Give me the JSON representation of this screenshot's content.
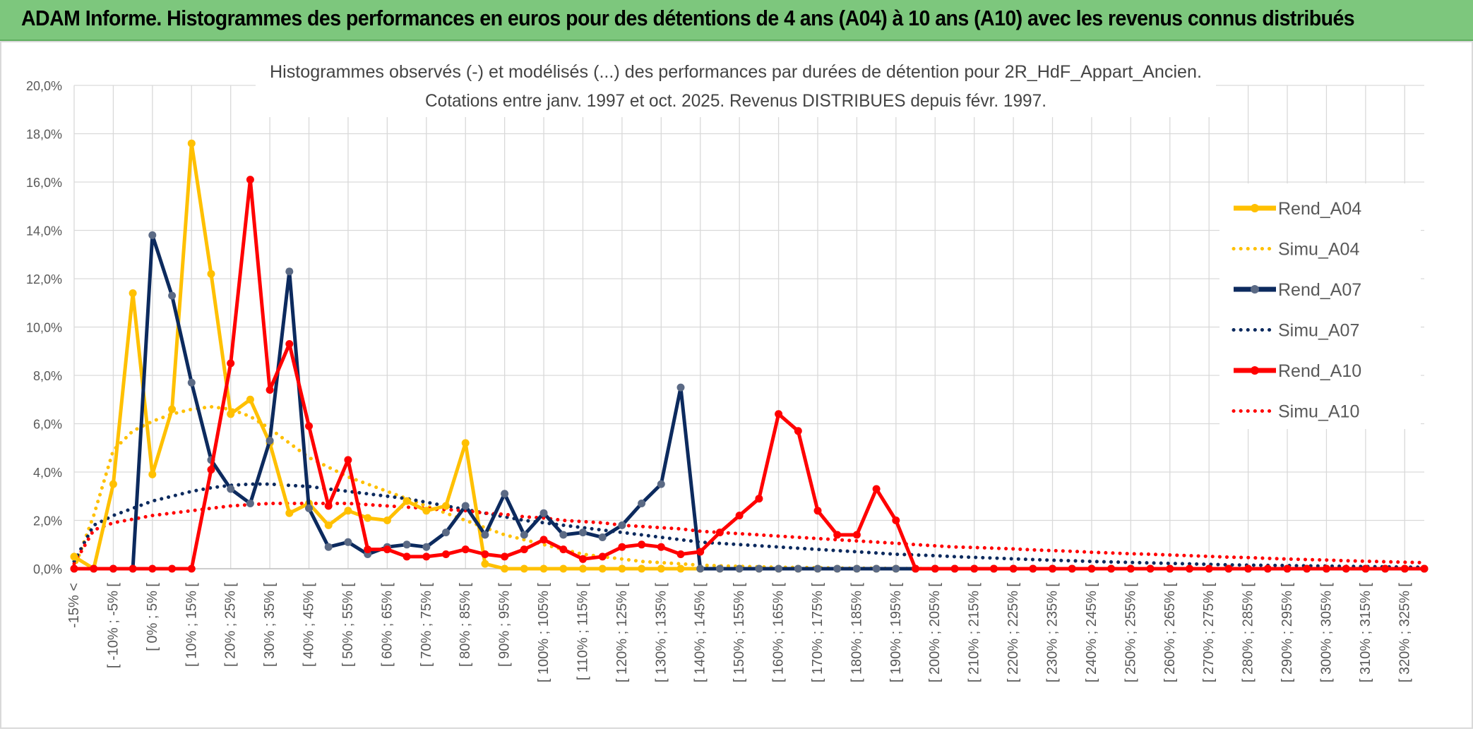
{
  "header": {
    "title": "ADAM Informe. Histogrammes des performances en euros pour des détentions de 4 ans (A04) à 10 ans (A10) avec les revenus connus distribués"
  },
  "chart_data": {
    "type": "line",
    "title": "Histogrammes observés (-) et modélisés (...) des performances par durées de détention pour 2R_HdF_Appart_Ancien.",
    "subtitle": "Cotations entre janv. 1997 et oct. 2025. Revenus DISTRIBUES depuis févr. 1997.",
    "xlabel": "",
    "ylabel": "",
    "ylim": [
      0,
      20
    ],
    "yticks": [
      "0,0%",
      "2,0%",
      "4,0%",
      "6,0%",
      "8,0%",
      "10,0%",
      "12,0%",
      "14,0%",
      "16,0%",
      "18,0%",
      "20,0%"
    ],
    "x_tick_labels": [
      "-15% <",
      "[ -10% ; -5% [",
      "[ 0% ; 5% [",
      "[ 10% ; 15% [",
      "[ 20% ; 25% [",
      "[ 30% ; 35% [",
      "[ 40% ; 45% [",
      "[ 50% ; 55% [",
      "[ 60% ; 65% [",
      "[ 70% ; 75% [",
      "[ 80% ; 85% [",
      "[ 90% ; 95% [",
      "[ 100% ; 105% [",
      "[ 110% ; 115% [",
      "[ 120% ; 125% [",
      "[ 130% ; 135% [",
      "[ 140% ; 145% [",
      "[ 150% ; 155% [",
      "[ 160% ; 165% [",
      "[ 170% ; 175% [",
      "[ 180% ; 185% [",
      "[ 190% ; 195% [",
      "[ 200% ; 205% [",
      "[ 210% ; 215% [",
      "[ 220% ; 225% [",
      "[ 230% ; 235% [",
      "[ 240% ; 245% [",
      "[ 250% ; 255% [",
      "[ 260% ; 265% [",
      "[ 270% ; 275% [",
      "[ 280% ; 285% [",
      "[ 290% ; 295% [",
      "[ 300% ; 305% [",
      "[ 310% ; 315% [",
      "[ 320% ; 325% ["
    ],
    "n_points": 70,
    "grid": true,
    "legend": "right",
    "series": [
      {
        "name": "Rend_A04",
        "style": "solid",
        "color": "#ffc000",
        "marker_color": "#ffc000",
        "values": [
          0.5,
          0,
          3.5,
          11.4,
          3.9,
          6.6,
          17.6,
          12.2,
          6.4,
          7.0,
          5.2,
          2.3,
          2.7,
          1.8,
          2.4,
          2.1,
          2.0,
          2.8,
          2.4,
          2.6,
          5.2,
          0.2,
          0,
          0,
          0,
          0,
          0,
          0,
          0,
          0,
          0,
          0,
          0,
          0,
          0,
          0,
          0,
          0,
          0,
          0,
          0,
          0,
          0,
          0,
          0,
          0,
          0,
          0,
          0,
          0,
          0,
          0,
          0,
          0,
          0,
          0,
          0,
          0,
          0,
          0,
          0,
          0,
          0,
          0,
          0,
          0,
          0,
          0,
          0,
          0
        ]
      },
      {
        "name": "Simu_A04",
        "style": "dotted",
        "color": "#ffc000",
        "values": [
          0,
          2.2,
          4.9,
          5.7,
          6.1,
          6.4,
          6.6,
          6.7,
          6.6,
          6.3,
          5.8,
          5.2,
          4.6,
          4.2,
          3.8,
          3.5,
          3.2,
          2.9,
          2.6,
          2.3,
          2.0,
          1.7,
          1.4,
          1.2,
          1.0,
          0.8,
          0.6,
          0.5,
          0.4,
          0.3,
          0.25,
          0.2,
          0.15,
          0.12,
          0.1,
          0.08,
          0.06,
          0.05,
          0.04,
          0.03,
          0.02,
          0.02,
          0.01,
          0.01,
          0,
          0,
          0,
          0,
          0,
          0,
          0,
          0,
          0,
          0,
          0,
          0,
          0,
          0,
          0,
          0,
          0,
          0,
          0,
          0,
          0,
          0,
          0,
          0,
          0,
          0
        ]
      },
      {
        "name": "Rend_A07",
        "style": "solid",
        "color": "#0c2a5e",
        "marker_color": "#5b6a85",
        "values": [
          0,
          0,
          0,
          0,
          13.8,
          11.3,
          7.7,
          4.5,
          3.3,
          2.7,
          5.3,
          12.3,
          2.5,
          0.9,
          1.1,
          0.6,
          0.9,
          1.0,
          0.9,
          1.5,
          2.6,
          1.4,
          3.1,
          1.4,
          2.3,
          1.4,
          1.5,
          1.3,
          1.8,
          2.7,
          3.5,
          7.5,
          0,
          0,
          0,
          0,
          0,
          0,
          0,
          0,
          0,
          0,
          0,
          0,
          0,
          0,
          0,
          0,
          0,
          0,
          0,
          0,
          0,
          0,
          0,
          0,
          0,
          0,
          0,
          0,
          0,
          0,
          0,
          0,
          0,
          0,
          0,
          0,
          0,
          0
        ]
      },
      {
        "name": "Simu_A07",
        "style": "dotted",
        "color": "#0c2a5e",
        "values": [
          0.3,
          1.8,
          2.2,
          2.5,
          2.8,
          3.0,
          3.2,
          3.35,
          3.45,
          3.5,
          3.5,
          3.45,
          3.4,
          3.3,
          3.2,
          3.1,
          3.0,
          2.9,
          2.75,
          2.6,
          2.45,
          2.3,
          2.15,
          2.0,
          1.9,
          1.8,
          1.7,
          1.6,
          1.5,
          1.4,
          1.3,
          1.2,
          1.1,
          1.05,
          1.0,
          0.95,
          0.9,
          0.85,
          0.8,
          0.75,
          0.7,
          0.65,
          0.6,
          0.57,
          0.54,
          0.5,
          0.47,
          0.44,
          0.41,
          0.38,
          0.35,
          0.33,
          0.3,
          0.28,
          0.26,
          0.24,
          0.22,
          0.2,
          0.18,
          0.16,
          0.15,
          0.14,
          0.13,
          0.12,
          0.11,
          0.1,
          0.09,
          0.08,
          0.07,
          0.06
        ]
      },
      {
        "name": "Rend_A10",
        "style": "solid",
        "color": "#ff0000",
        "marker_color": "#ff0000",
        "values": [
          0,
          0,
          0,
          0,
          0,
          0,
          0,
          4.1,
          8.5,
          16.1,
          7.4,
          9.3,
          5.9,
          2.6,
          4.5,
          0.8,
          0.8,
          0.5,
          0.5,
          0.6,
          0.8,
          0.6,
          0.5,
          0.8,
          1.2,
          0.8,
          0.4,
          0.5,
          0.9,
          1.0,
          0.9,
          0.6,
          0.7,
          1.5,
          2.2,
          2.9,
          6.4,
          5.7,
          2.4,
          1.4,
          1.4,
          3.3,
          2.0,
          0,
          0,
          0,
          0,
          0,
          0,
          0,
          0,
          0,
          0,
          0,
          0,
          0,
          0,
          0,
          0,
          0,
          0,
          0,
          0,
          0,
          0,
          0,
          0,
          0,
          0,
          0
        ]
      },
      {
        "name": "Simu_A10",
        "style": "dotted",
        "color": "#ff0000",
        "values": [
          0.2,
          1.6,
          1.9,
          2.05,
          2.2,
          2.3,
          2.4,
          2.5,
          2.6,
          2.65,
          2.7,
          2.7,
          2.7,
          2.7,
          2.7,
          2.65,
          2.6,
          2.55,
          2.5,
          2.45,
          2.4,
          2.3,
          2.25,
          2.15,
          2.1,
          2.0,
          1.95,
          1.9,
          1.8,
          1.75,
          1.7,
          1.65,
          1.55,
          1.5,
          1.45,
          1.4,
          1.35,
          1.3,
          1.25,
          1.2,
          1.15,
          1.1,
          1.05,
          1.0,
          0.95,
          0.9,
          0.88,
          0.85,
          0.82,
          0.78,
          0.75,
          0.72,
          0.68,
          0.65,
          0.62,
          0.6,
          0.57,
          0.54,
          0.51,
          0.48,
          0.46,
          0.43,
          0.4,
          0.38,
          0.36,
          0.33,
          0.31,
          0.29,
          0.27,
          0.25
        ]
      }
    ]
  }
}
